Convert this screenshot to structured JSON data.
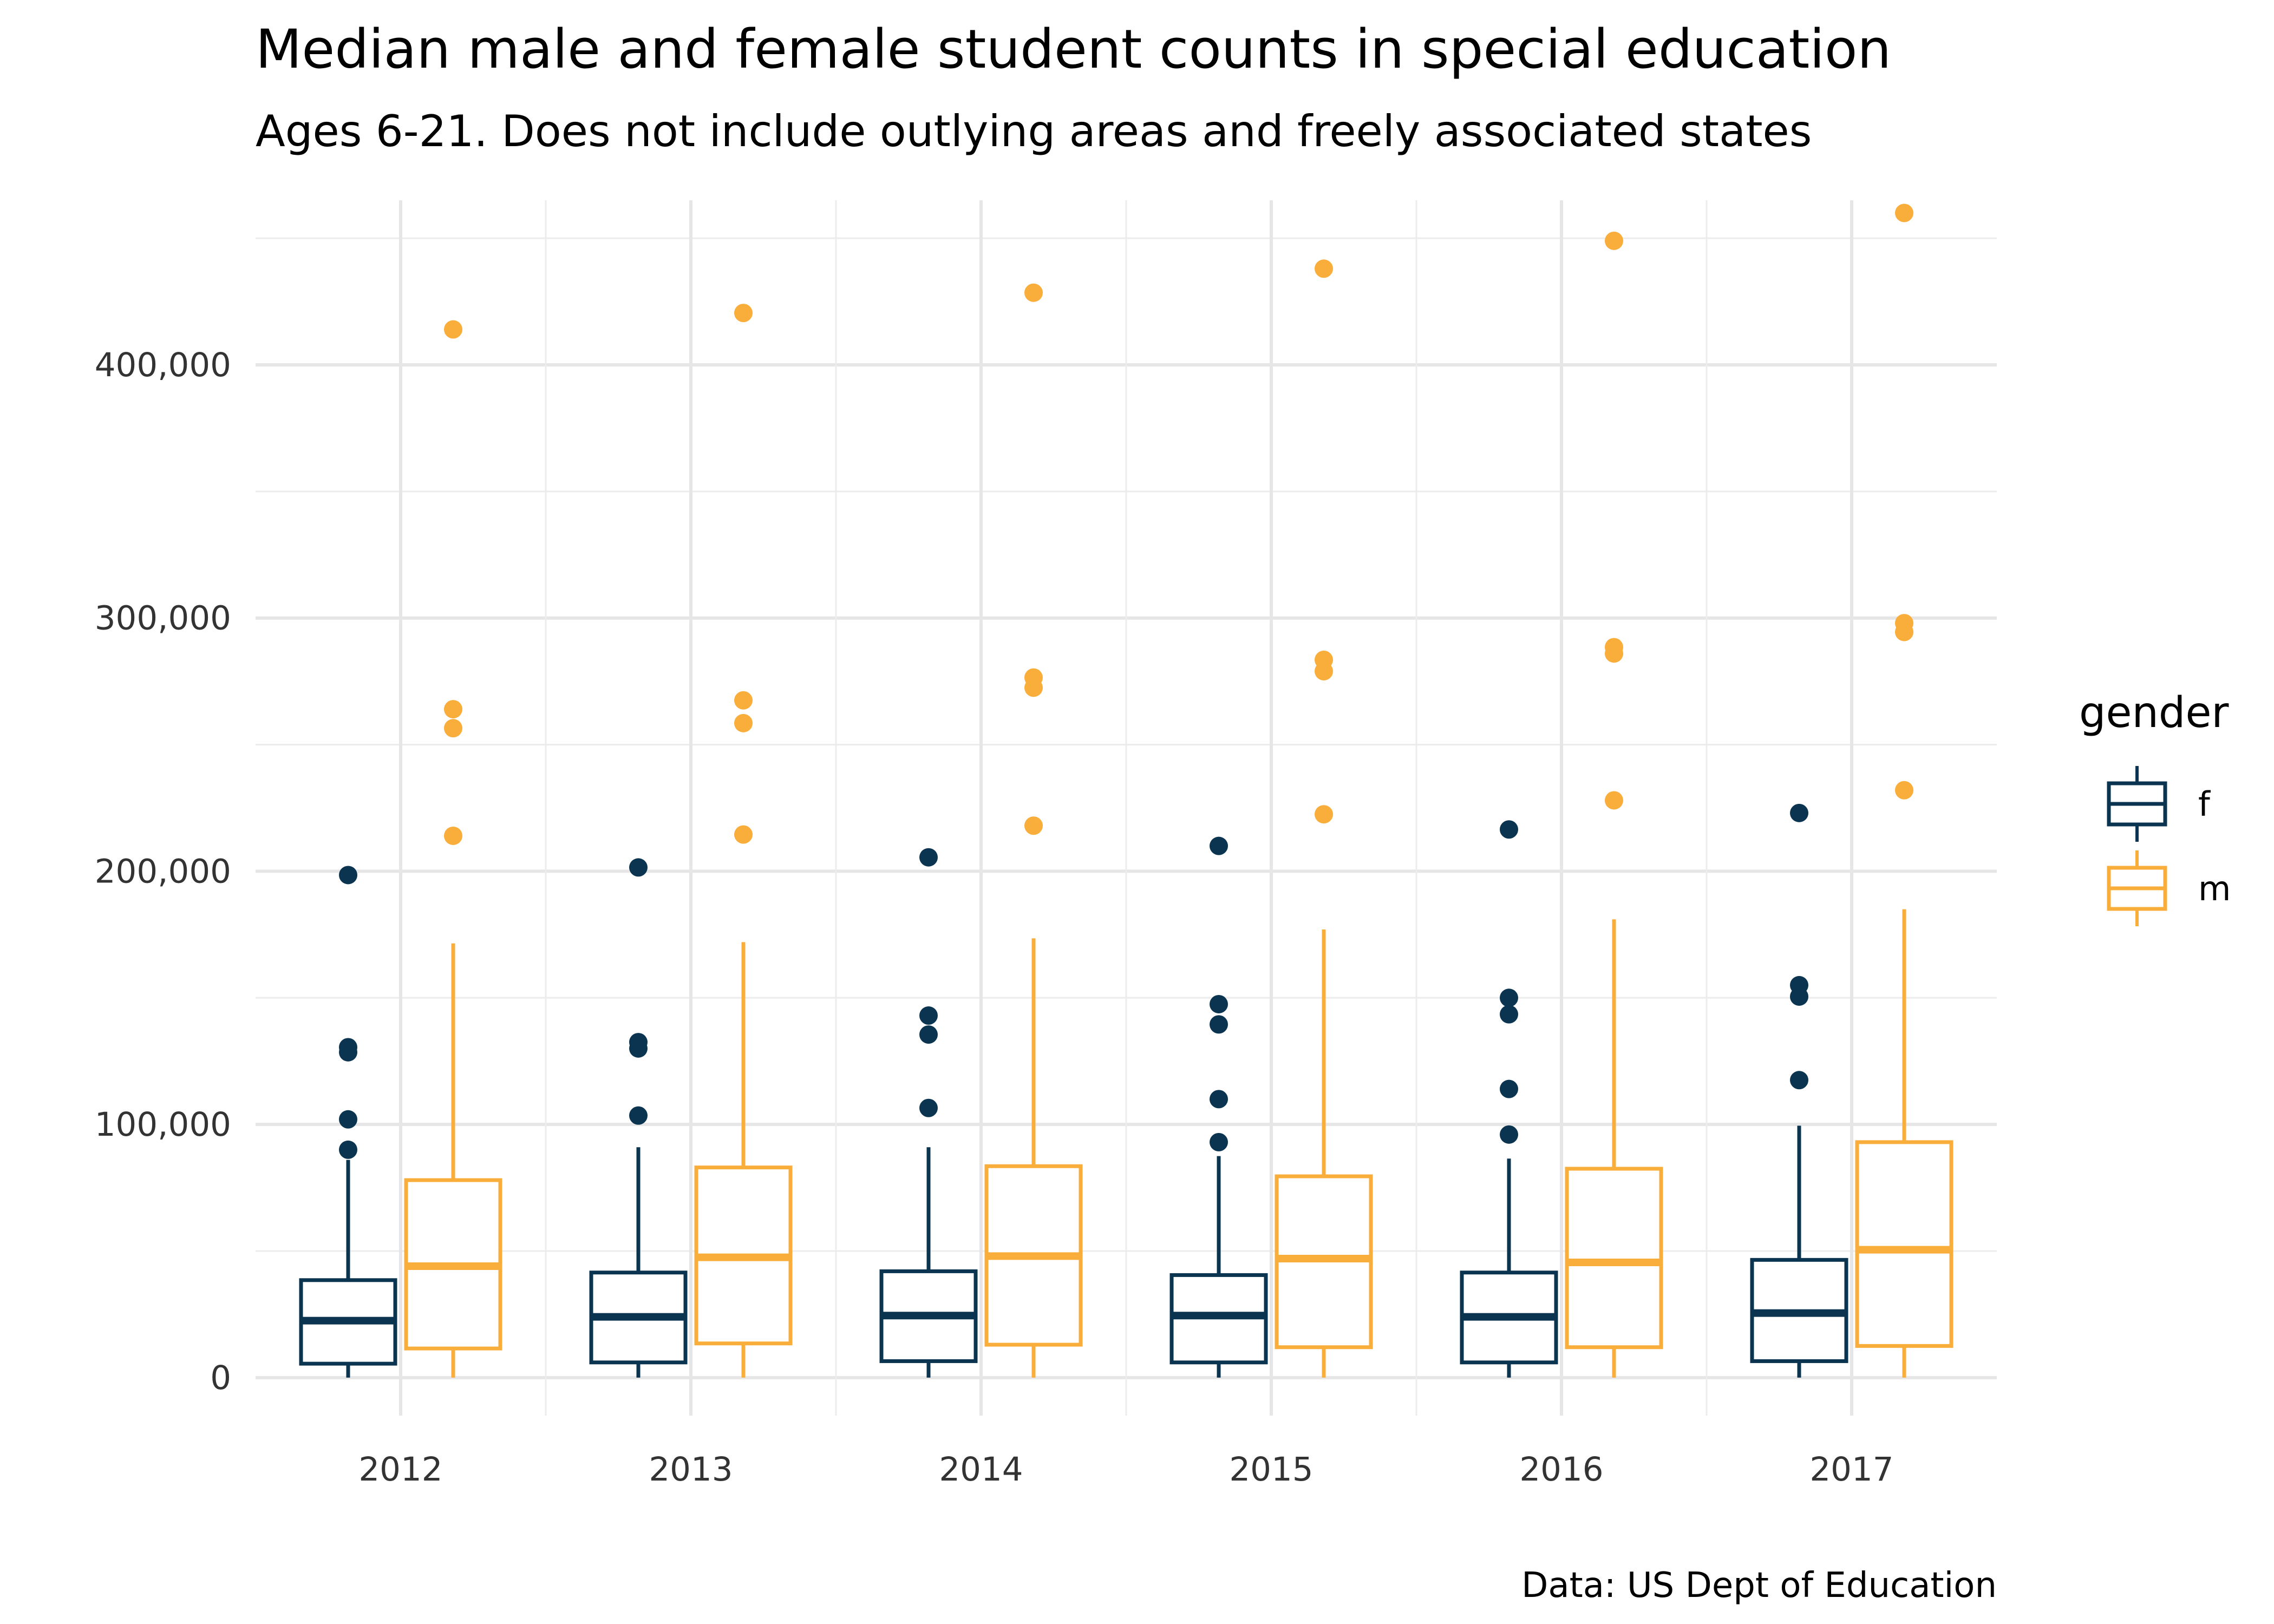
{
  "chart_data": {
    "type": "boxplot",
    "title": "Median male and female student counts in special education",
    "subtitle": "Ages 6-21. Does not include outlying areas and freely associated states",
    "caption": "Data: US Dept of Education",
    "xlabel": "",
    "ylabel": "",
    "categories": [
      "2012",
      "2013",
      "2014",
      "2015",
      "2016",
      "2017"
    ],
    "ylim": [
      -15000,
      465000
    ],
    "y_ticks": [
      0,
      100000,
      200000,
      300000,
      400000
    ],
    "y_tick_labels": [
      "0",
      "100,000",
      "200,000",
      "300,000",
      "400,000"
    ],
    "grid": true,
    "legend": {
      "title": "gender",
      "position": "right"
    },
    "series": [
      {
        "name": "f",
        "color": "#0b3451",
        "boxes": [
          {
            "whisker_low": 0,
            "q1": 5500,
            "median": 22500,
            "q3": 38500,
            "whisker_high": 86000,
            "outliers": [
              90000,
              102000,
              128500,
              130500,
              198500
            ]
          },
          {
            "whisker_low": 0,
            "q1": 6000,
            "median": 24000,
            "q3": 41500,
            "whisker_high": 91000,
            "outliers": [
              103500,
              130000,
              132500,
              201500
            ]
          },
          {
            "whisker_low": 0,
            "q1": 6500,
            "median": 24500,
            "q3": 42000,
            "whisker_high": 91000,
            "outliers": [
              106500,
              135500,
              143000,
              205500
            ]
          },
          {
            "whisker_low": 0,
            "q1": 6000,
            "median": 24500,
            "q3": 40500,
            "whisker_high": 87500,
            "outliers": [
              93000,
              110000,
              139500,
              147500,
              210000
            ]
          },
          {
            "whisker_low": 0,
            "q1": 6000,
            "median": 24000,
            "q3": 41500,
            "whisker_high": 86500,
            "outliers": [
              96000,
              114000,
              143500,
              150000,
              216500
            ]
          },
          {
            "whisker_low": 0,
            "q1": 6500,
            "median": 25500,
            "q3": 46500,
            "whisker_high": 99500,
            "outliers": [
              117500,
              150500,
              155000,
              223000
            ]
          }
        ]
      },
      {
        "name": "m",
        "color": "#f9ad3a",
        "boxes": [
          {
            "whisker_low": 0,
            "q1": 11500,
            "median": 44000,
            "q3": 78000,
            "whisker_high": 171500,
            "outliers": [
              214000,
              256500,
              264000,
              414000
            ]
          },
          {
            "whisker_low": 0,
            "q1": 13500,
            "median": 47500,
            "q3": 83000,
            "whisker_high": 172000,
            "outliers": [
              214500,
              258500,
              267500,
              420500
            ]
          },
          {
            "whisker_low": 0,
            "q1": 13000,
            "median": 48000,
            "q3": 83500,
            "whisker_high": 173500,
            "outliers": [
              218000,
              272500,
              276500,
              428500
            ]
          },
          {
            "whisker_low": 0,
            "q1": 12000,
            "median": 47000,
            "q3": 79500,
            "whisker_high": 177000,
            "outliers": [
              222500,
              279000,
              283500,
              438000
            ]
          },
          {
            "whisker_low": 0,
            "q1": 12000,
            "median": 45500,
            "q3": 82500,
            "whisker_high": 181000,
            "outliers": [
              228000,
              286000,
              288500,
              449000
            ]
          },
          {
            "whisker_low": 0,
            "q1": 12500,
            "median": 50500,
            "q3": 93000,
            "whisker_high": 185000,
            "outliers": [
              232000,
              294500,
              298000,
              460000
            ]
          }
        ]
      }
    ]
  }
}
